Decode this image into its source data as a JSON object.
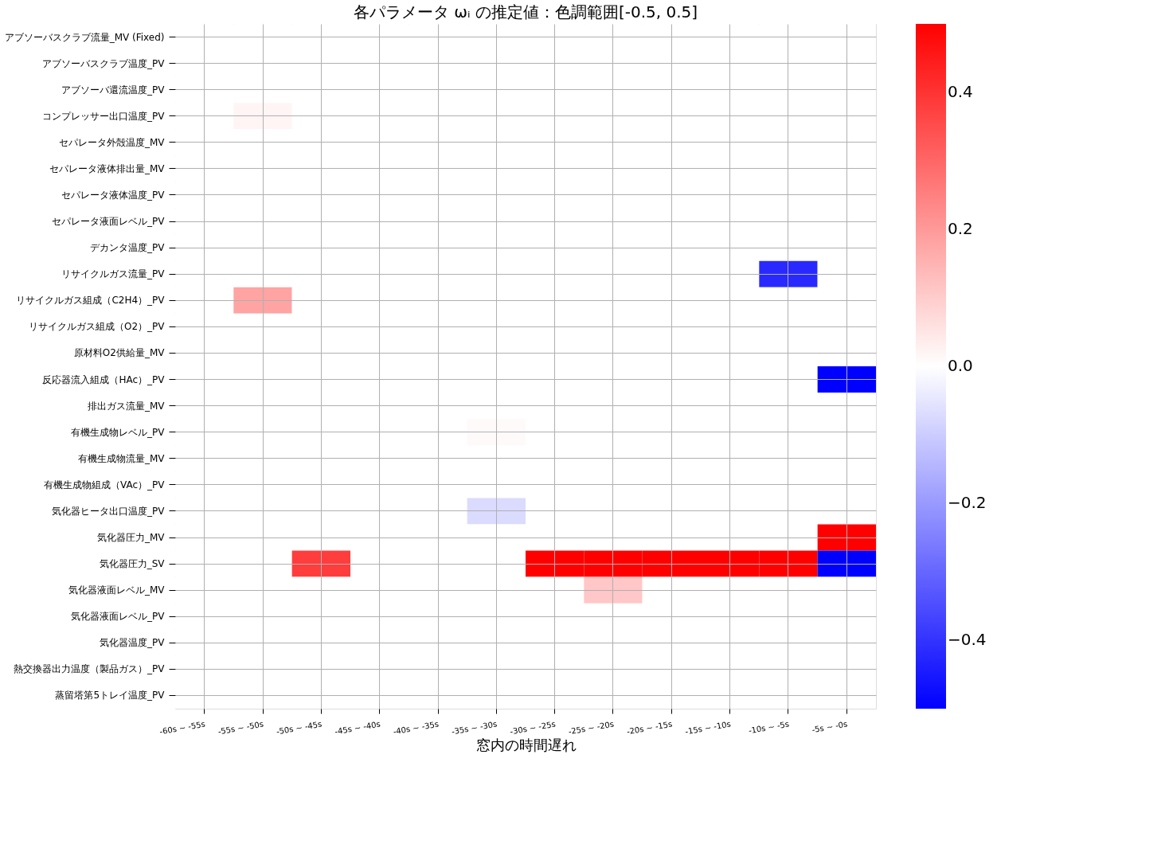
{
  "chart_data": {
    "type": "heatmap",
    "title": "各パラメータ ωᵢ の推定値：色調範囲[-0.5, 0.5]",
    "xlabel": "窓内の時間遅れ",
    "categories": [
      "-60s ~ -55s",
      "-55s ~ -50s",
      "-50s ~ -45s",
      "-45s ~ -40s",
      "-40s ~ -35s",
      "-35s ~ -30s",
      "-30s ~ -25s",
      "-25s ~ -20s",
      "-20s ~ -15s",
      "-15s ~ -10s",
      "-10s ~ -5s",
      "-5s ~ -0s"
    ],
    "y_categories": [
      "アブソーバスクラブ流量_MV (Fixed)",
      "アブソーバスクラブ温度_PV",
      "アブソーバ還流温度_PV",
      "コンプレッサー出口温度_PV",
      "セパレータ外殻温度_MV",
      "セパレータ液体排出量_MV",
      "セパレータ液体温度_PV",
      "セパレータ液面レベル_PV",
      "デカンタ温度_PV",
      "リサイクルガス流量_PV",
      "リサイクルガス組成（C2H4）_PV",
      "リサイクルガス組成（O2）_PV",
      "原材料O2供給量_MV",
      "反応器流入組成（HAc）_PV",
      "排出ガス流量_MV",
      "有機生成物レベル_PV",
      "有機生成物流量_MV",
      "有機生成物組成（VAc）_PV",
      "気化器ヒータ出口温度_PV",
      "気化器圧力_MV",
      "気化器圧力_SV",
      "気化器液面レベル_MV",
      "気化器液面レベル_PV",
      "気化器温度_PV",
      "熱交換器出力温度（製品ガス）_PV",
      "蒸留塔第5トレイ温度_PV"
    ],
    "cells": [
      [
        0,
        0,
        0,
        0,
        0,
        0,
        0,
        0,
        0,
        0,
        0,
        0
      ],
      [
        0,
        0,
        0,
        0,
        0,
        0,
        0,
        0,
        0,
        0,
        0,
        0
      ],
      [
        0,
        0,
        0,
        0,
        0,
        0,
        0,
        0,
        0,
        0,
        0,
        0
      ],
      [
        0,
        0.02,
        0,
        0,
        0,
        0,
        0,
        0,
        0,
        0,
        0,
        0
      ],
      [
        0,
        0,
        0,
        0,
        0,
        0,
        0,
        0,
        0,
        0,
        0,
        0
      ],
      [
        0,
        0,
        0,
        0,
        0,
        0,
        0,
        0,
        0,
        0,
        0,
        0
      ],
      [
        0,
        0,
        0,
        0,
        0,
        0,
        0,
        0,
        0,
        0,
        0,
        0
      ],
      [
        0,
        0,
        0,
        0,
        0,
        0,
        0,
        0,
        0,
        0,
        0,
        0
      ],
      [
        0,
        0,
        0,
        0,
        0,
        0,
        0,
        0,
        0,
        0,
        0,
        0
      ],
      [
        0,
        0,
        0,
        0,
        0,
        0,
        0,
        0,
        0,
        0,
        -0.42,
        0
      ],
      [
        0,
        0.18,
        0,
        0,
        0,
        0,
        0,
        0,
        0,
        0,
        0,
        0
      ],
      [
        0,
        0,
        0,
        0,
        0,
        0,
        0,
        0,
        0,
        0,
        0,
        0
      ],
      [
        0,
        0,
        0,
        0,
        0,
        0,
        0,
        0,
        0,
        0,
        0,
        0
      ],
      [
        0,
        0,
        0,
        0,
        0,
        0,
        0,
        0,
        0,
        0,
        0,
        -0.5
      ],
      [
        0,
        0,
        0,
        0,
        0,
        0,
        0,
        0,
        0,
        0,
        0,
        0
      ],
      [
        0,
        0,
        0,
        0,
        0,
        0.01,
        0,
        0,
        0,
        0,
        0,
        0
      ],
      [
        0,
        0,
        0,
        0,
        0,
        0,
        0,
        0,
        0,
        0,
        0,
        0
      ],
      [
        0,
        0,
        0,
        0,
        0,
        0,
        0,
        0,
        0,
        0,
        0,
        0
      ],
      [
        0,
        0,
        0,
        0,
        0,
        -0.07,
        0,
        0,
        0,
        0,
        0,
        0
      ],
      [
        0,
        0,
        0,
        0,
        0,
        0,
        0,
        0,
        0,
        0,
        0,
        0.5
      ],
      [
        0,
        0,
        0.38,
        0,
        0,
        0,
        0.5,
        0.5,
        0.5,
        0.5,
        0.5,
        -0.5
      ],
      [
        0,
        0,
        0,
        0,
        0,
        0,
        0,
        0.11,
        0,
        0,
        0,
        0
      ],
      [
        0,
        0,
        0,
        0,
        0,
        0,
        0,
        0,
        0,
        0,
        0,
        0
      ],
      [
        0,
        0,
        0,
        0,
        0,
        0,
        0,
        0,
        0,
        0,
        0,
        0
      ],
      [
        0,
        0,
        0,
        0,
        0,
        0,
        0,
        0,
        0,
        0,
        0,
        0
      ],
      [
        0,
        0,
        0,
        0,
        0,
        0,
        0,
        0,
        0,
        0,
        0,
        0
      ]
    ],
    "clim": [
      -0.5,
      0.5
    ],
    "cticks": [
      {
        "value": 0.4,
        "label": "0.4"
      },
      {
        "value": 0.2,
        "label": "0.2"
      },
      {
        "value": 0.0,
        "label": "0.0"
      },
      {
        "value": -0.2,
        "label": "−0.2"
      },
      {
        "value": -0.4,
        "label": "−0.4"
      }
    ],
    "grid": true
  }
}
